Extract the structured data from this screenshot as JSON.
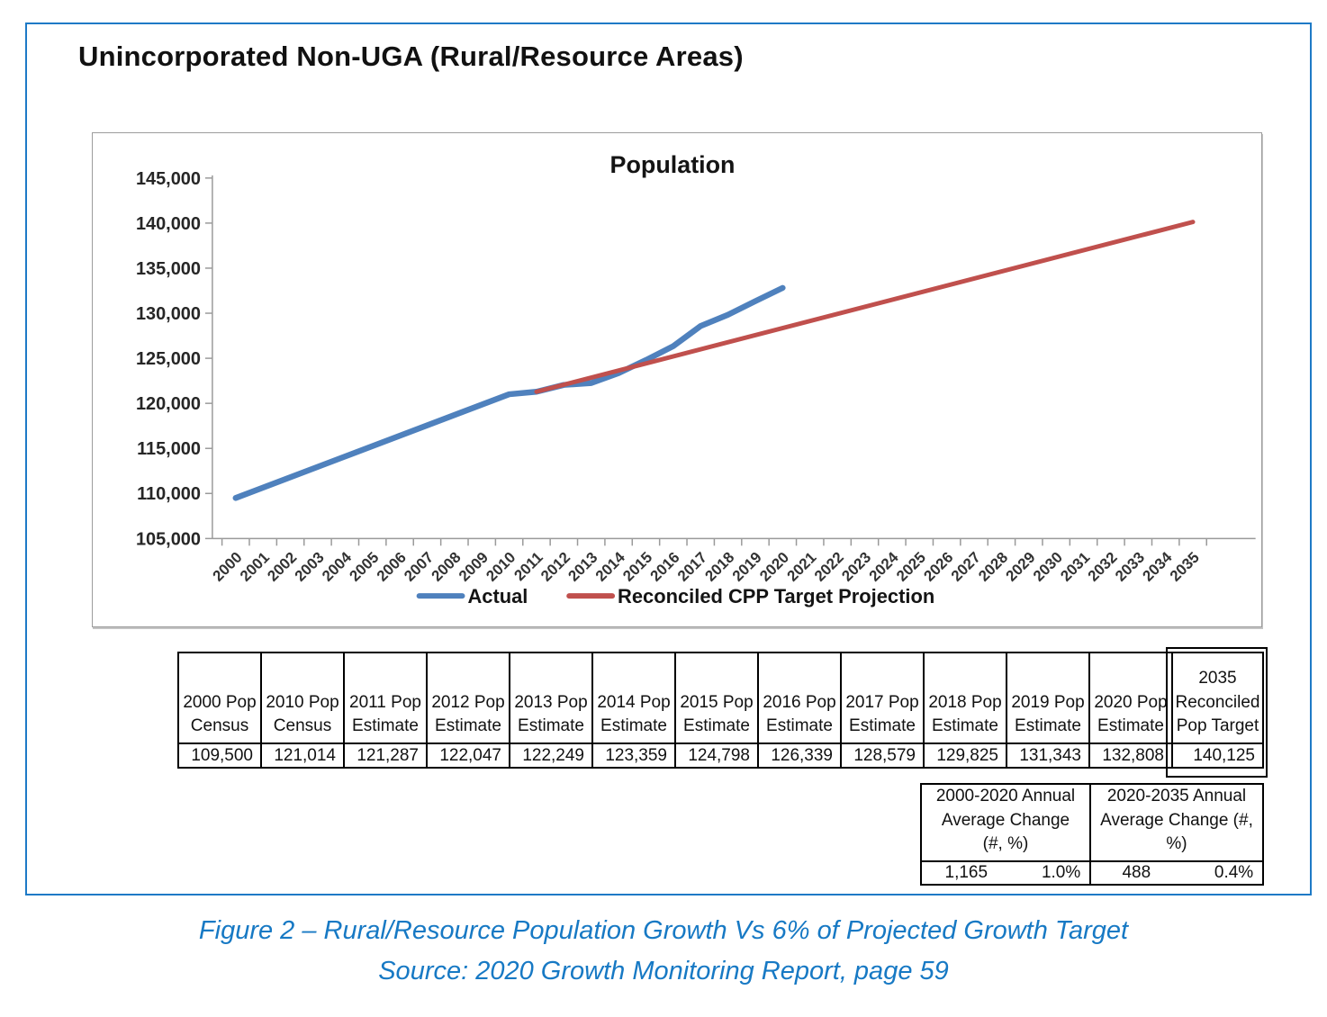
{
  "title": "Unincorporated Non-UGA (Rural/Resource Areas)",
  "chart_data": {
    "type": "line",
    "title": "Population",
    "x_years": [
      2000,
      2001,
      2002,
      2003,
      2004,
      2005,
      2006,
      2007,
      2008,
      2009,
      2010,
      2011,
      2012,
      2013,
      2014,
      2015,
      2016,
      2017,
      2018,
      2019,
      2020,
      2021,
      2022,
      2023,
      2024,
      2025,
      2026,
      2027,
      2028,
      2029,
      2030,
      2031,
      2032,
      2033,
      2034,
      2035
    ],
    "ylim": [
      105000,
      145000
    ],
    "ytick_step": 5000,
    "ytick_labels": [
      "105,000",
      "110,000",
      "115,000",
      "120,000",
      "125,000",
      "130,000",
      "135,000",
      "140,000",
      "145,000"
    ],
    "grid": false,
    "legend_position": "bottom",
    "series": [
      {
        "name": "Actual",
        "color": "#4F81BD",
        "width": 6.5,
        "points": [
          [
            2000,
            109500
          ],
          [
            2010,
            121014
          ],
          [
            2011,
            121287
          ],
          [
            2012,
            122047
          ],
          [
            2013,
            122249
          ],
          [
            2014,
            123359
          ],
          [
            2015,
            124798
          ],
          [
            2016,
            126339
          ],
          [
            2017,
            128579
          ],
          [
            2018,
            129825
          ],
          [
            2019,
            131343
          ],
          [
            2020,
            132808
          ]
        ]
      },
      {
        "name": "Reconciled CPP Target Projection",
        "color": "#C0504D",
        "width": 5,
        "points": [
          [
            2011,
            121287
          ],
          [
            2035,
            140125
          ]
        ]
      }
    ]
  },
  "population_table": {
    "columns": [
      {
        "header_lines": [
          "2000 Pop",
          "Census"
        ],
        "value": "109,500"
      },
      {
        "header_lines": [
          "2010 Pop",
          "Census"
        ],
        "value": "121,014"
      },
      {
        "header_lines": [
          "2011 Pop",
          "Estimate"
        ],
        "value": "121,287"
      },
      {
        "header_lines": [
          "2012 Pop",
          "Estimate"
        ],
        "value": "122,047"
      },
      {
        "header_lines": [
          "2013 Pop",
          "Estimate"
        ],
        "value": "122,249"
      },
      {
        "header_lines": [
          "2014 Pop",
          "Estimate"
        ],
        "value": "123,359"
      },
      {
        "header_lines": [
          "2015 Pop",
          "Estimate"
        ],
        "value": "124,798"
      },
      {
        "header_lines": [
          "2016 Pop",
          "Estimate"
        ],
        "value": "126,339"
      },
      {
        "header_lines": [
          "2017 Pop",
          "Estimate"
        ],
        "value": "128,579"
      },
      {
        "header_lines": [
          "2018 Pop",
          "Estimate"
        ],
        "value": "129,825"
      },
      {
        "header_lines": [
          "2019 Pop",
          "Estimate"
        ],
        "value": "131,343"
      },
      {
        "header_lines": [
          "2020 Pop",
          "Estimate"
        ],
        "value": "132,808"
      },
      {
        "header_lines": [
          "2035",
          "Reconciled",
          "Pop Target"
        ],
        "value": "140,125",
        "highlight": true
      }
    ]
  },
  "change_table": {
    "columns": [
      {
        "header_lines": [
          "2000-2020 Annual",
          "Average Change",
          "(#, %)"
        ],
        "count": "1,165",
        "percent": "1.0%"
      },
      {
        "header_lines": [
          "2020-2035 Annual",
          "Average Change (#, %)"
        ],
        "count": "488",
        "percent": "0.4%"
      }
    ]
  },
  "caption": {
    "line1": "Figure 2 – Rural/Resource Population Growth Vs 6% of Projected Growth Target",
    "line2": "Source: 2020 Growth Monitoring Report, page 59"
  },
  "colors": {
    "actual_line": "#4F81BD",
    "projection_line": "#C0504D",
    "caption_text": "#1779C4",
    "panel_border": "#1E7AC6"
  }
}
